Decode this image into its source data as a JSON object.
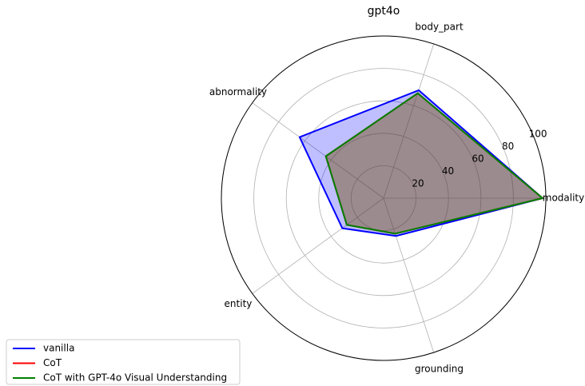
{
  "chart_data": {
    "type": "radar",
    "title": "gpt4o",
    "categories": [
      "modality",
      "body_part",
      "abnormality",
      "entity",
      "grounding"
    ],
    "series": [
      {
        "name": "vanilla",
        "color": "#0000ff",
        "values": [
          98,
          70,
          64,
          31.5,
          24.5
        ]
      },
      {
        "name": "CoT",
        "color": "#ff0000",
        "values": [
          98,
          68,
          44,
          28,
          23
        ]
      },
      {
        "name": "CoT with GPT-4o Visual Understanding",
        "color": "#008000",
        "values": [
          98,
          68,
          44,
          28,
          23
        ]
      }
    ],
    "rlim": [
      0,
      100
    ],
    "rticks": [
      20,
      40,
      60,
      80,
      100
    ],
    "grid": true,
    "fill_alpha": 0.25,
    "legend": "lower left"
  }
}
